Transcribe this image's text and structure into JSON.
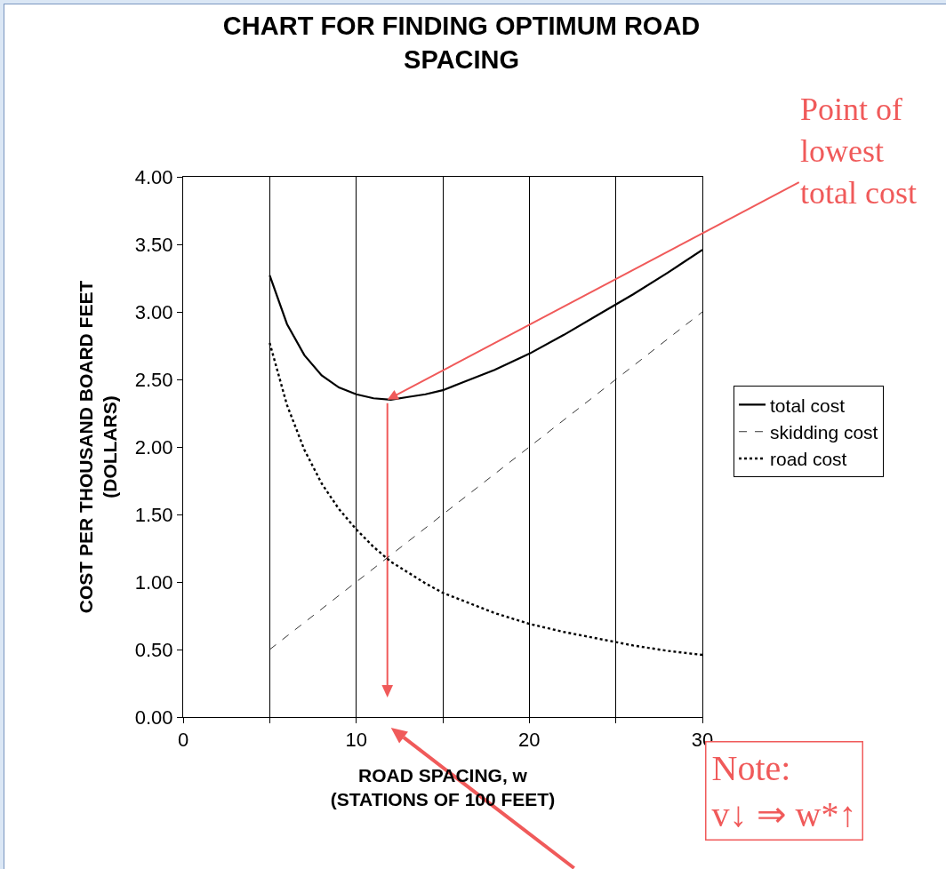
{
  "chart_data": {
    "type": "line",
    "title": "CHART FOR FINDING OPTIMUM ROAD\nSPACING",
    "xlabel": "ROAD SPACING, w\n(STATIONS OF 100 FEET)",
    "ylabel": "COST PER THOUSAND BOARD FEET\n(DOLLARS)",
    "xlim": [
      0,
      30
    ],
    "xticks": [
      0,
      {
        "value": 5,
        "label": null
      },
      10,
      {
        "value": 15,
        "label": null
      },
      20,
      {
        "value": 25,
        "label": null
      },
      30
    ],
    "ylim": [
      0,
      4
    ],
    "yticks": [
      {
        "value": 0,
        "label": "0.00"
      },
      {
        "value": 0.5,
        "label": "0.50"
      },
      {
        "value": 1,
        "label": "1.00"
      },
      {
        "value": 1.5,
        "label": "1.50"
      },
      {
        "value": 2,
        "label": "2.00"
      },
      {
        "value": 2.5,
        "label": "2.50"
      },
      {
        "value": 3,
        "label": "3.00"
      },
      {
        "value": 3.5,
        "label": "3.50"
      },
      {
        "value": 4,
        "label": "4.00"
      }
    ],
    "grid": "x",
    "legend": "right",
    "marker": "none",
    "series": [
      {
        "name": "total cost",
        "color": "#000000",
        "line_style": "solid",
        "x": [
          5,
          6,
          7,
          8,
          9,
          10,
          11,
          12,
          13,
          14,
          15,
          16,
          18,
          20,
          22,
          24,
          26,
          28,
          30
        ],
        "values": [
          3.27,
          2.91,
          2.68,
          2.53,
          2.44,
          2.39,
          2.36,
          2.35,
          2.37,
          2.39,
          2.42,
          2.47,
          2.57,
          2.69,
          2.83,
          2.98,
          3.13,
          3.29,
          3.46
        ]
      },
      {
        "name": "skidding cost",
        "color": "#000000",
        "line_style": "dashed",
        "x": [
          5,
          30
        ],
        "values": [
          0.5,
          3.0
        ]
      },
      {
        "name": "road cost",
        "color": "#000000",
        "line_style": "dotted",
        "x": [
          5,
          6,
          7,
          8,
          9,
          10,
          11,
          12,
          13,
          14,
          15,
          16,
          18,
          20,
          22,
          24,
          26,
          28,
          30
        ],
        "values": [
          2.77,
          2.31,
          1.98,
          1.73,
          1.54,
          1.39,
          1.26,
          1.15,
          1.07,
          0.99,
          0.92,
          0.87,
          0.77,
          0.69,
          0.63,
          0.58,
          0.53,
          0.49,
          0.46
        ]
      }
    ],
    "annotations": [
      {
        "text": "Point of\nlowest\ntotal cost",
        "x": 11.8,
        "y": 2.35
      },
      "Note:\nv↓ ⇒ w*↑"
    ]
  }
}
